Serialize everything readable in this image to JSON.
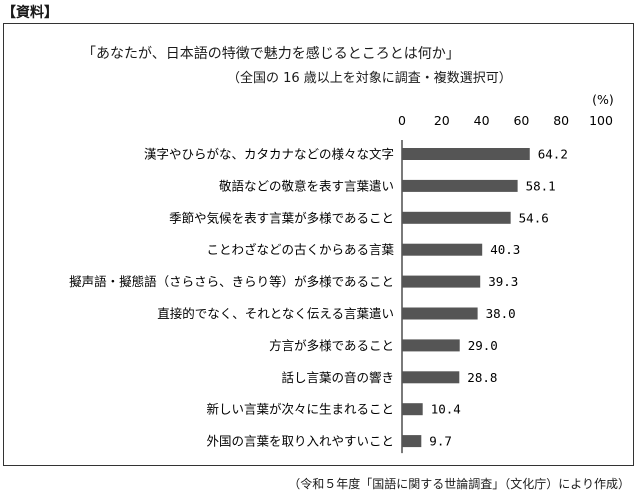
{
  "doc_label": "【資料】",
  "source_note": "（令和５年度「国語に関する世論調査」（文化庁）により作成）",
  "chart_data": {
    "type": "bar",
    "orientation": "horizontal",
    "title": "「あなたが、日本語の特徴で魅力を感じるところとは何か」",
    "subtitle": "（全国の 16 歳以上を対象に調査・複数選択可）",
    "unit": "(%)",
    "xlim": [
      0,
      100
    ],
    "ticks": [
      0,
      20,
      40,
      60,
      80,
      100
    ],
    "grid": false,
    "bar_color": "#555555",
    "categories": [
      "漢字やひらがな、カタカナなどの様々な文字",
      "敬語などの敬意を表す言葉遣い",
      "季節や気候を表す言葉が多様であること",
      "ことわざなどの古くからある言葉",
      "擬声語・擬態語（さらさら、きらり等）が多様であること",
      "直接的でなく、それとなく伝える言葉遣い",
      "方言が多様であること",
      "話し言葉の音の響き",
      "新しい言葉が次々に生まれること",
      "外国の言葉を取り入れやすいこと"
    ],
    "values": [
      64.2,
      58.1,
      54.6,
      40.3,
      39.3,
      38.0,
      29.0,
      28.8,
      10.4,
      9.7
    ],
    "value_labels": [
      "64.2",
      "58.1",
      "54.6",
      "40.3",
      "39.3",
      "38.0",
      "29.0",
      "28.8",
      "10.4",
      "9.7"
    ]
  }
}
